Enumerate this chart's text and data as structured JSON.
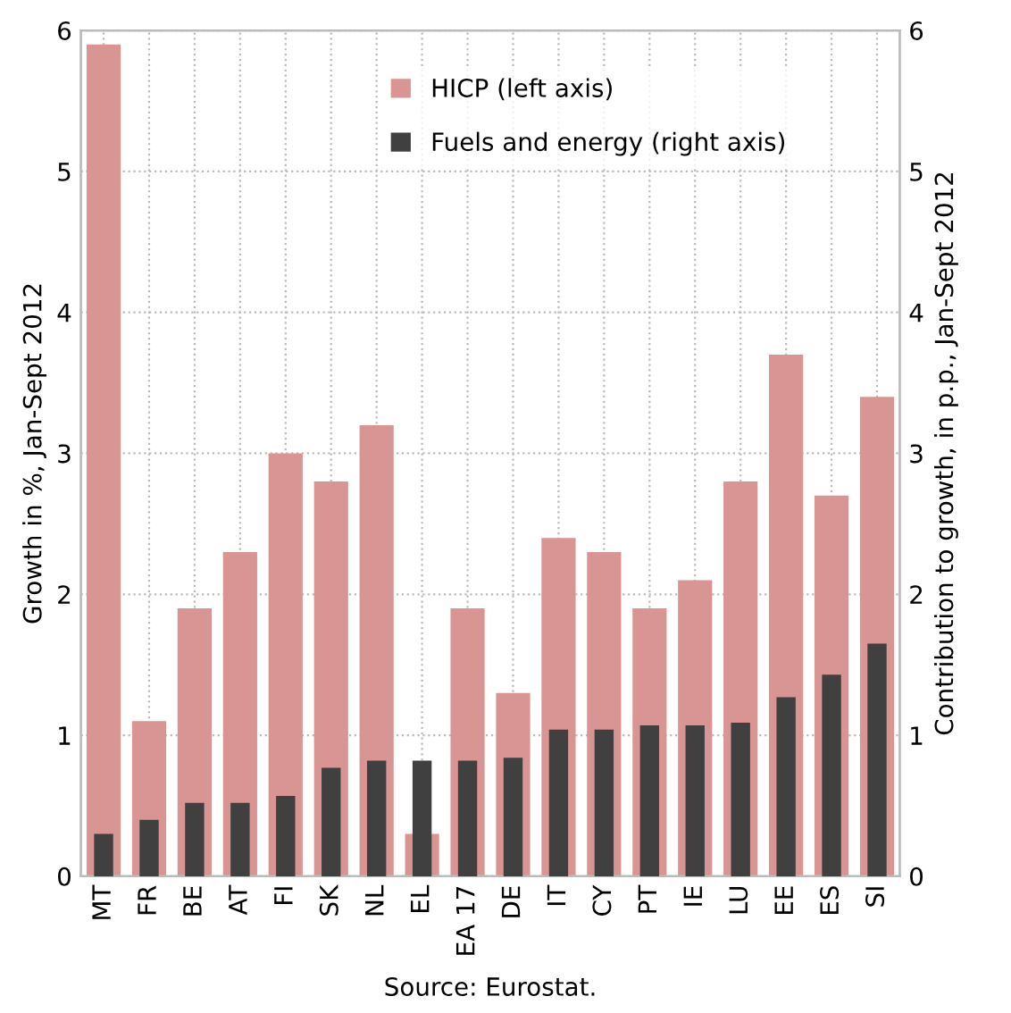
{
  "chart_data": {
    "type": "bar",
    "ylabel": "Growth in %, Jan-Sept 2012",
    "y2label": "Contribution to growth, in p.p., Jan-Sept 2012",
    "categories": [
      "MT",
      "FR",
      "BE",
      "AT",
      "FI",
      "SK",
      "NL",
      "EL",
      "EA 17",
      "DE",
      "IT",
      "CY",
      "PT",
      "IE",
      "LU",
      "EE",
      "ES",
      "SI"
    ],
    "series": [
      {
        "name": "HICP (left axis)",
        "color": "#d99594",
        "values": [
          5.9,
          1.1,
          1.9,
          2.3,
          3.0,
          2.8,
          3.2,
          0.3,
          1.9,
          1.3,
          2.4,
          2.3,
          1.9,
          2.1,
          2.8,
          3.7,
          2.7,
          3.4
        ]
      },
      {
        "name": "Fuels and energy (right axis)",
        "color": "#404040",
        "axis": "y2",
        "values": [
          0.3,
          0.4,
          0.52,
          0.52,
          0.57,
          0.77,
          0.82,
          0.82,
          0.82,
          0.84,
          1.04,
          1.04,
          1.07,
          1.07,
          1.09,
          1.27,
          1.43,
          1.65
        ]
      }
    ],
    "ylim": [
      0,
      6
    ],
    "yticks": [
      0,
      1,
      2,
      3,
      4,
      5,
      6
    ],
    "y2lim": [
      0,
      6
    ],
    "y2ticks": [
      0,
      1,
      2,
      3,
      4,
      5,
      6
    ],
    "grid": true,
    "legend": "top",
    "annotations": [
      "Source: Eurostat."
    ]
  }
}
